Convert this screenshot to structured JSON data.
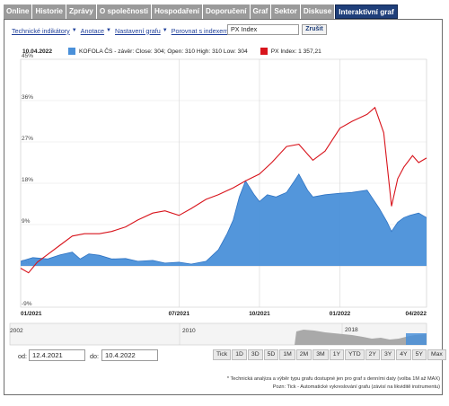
{
  "tabs": [
    {
      "label": "Online",
      "active": false
    },
    {
      "label": "Historie",
      "active": false
    },
    {
      "label": "Zprávy",
      "active": false
    },
    {
      "label": "O společnosti",
      "active": false
    },
    {
      "label": "Hospodaření",
      "active": false
    },
    {
      "label": "Doporučení",
      "active": false
    },
    {
      "label": "Graf",
      "active": false
    },
    {
      "label": "Sektor",
      "active": false
    },
    {
      "label": "Diskuse",
      "active": false
    },
    {
      "label": "Interaktivní graf",
      "active": true
    }
  ],
  "toolbar": {
    "indicators": "Technické indikátory",
    "annotation": "Anotace",
    "settings": "Nastavení grafu",
    "compare": "Porovnat s indexem",
    "compare_value": "PX Index",
    "cancel_label": "Zrušit"
  },
  "legend": {
    "date": "10.04.2022",
    "kofola": "KOFOLA ČS - závěr: Close: 304; Open: 310 High: 310 Low: 304",
    "px": "PX Index: 1 357,21"
  },
  "colors": {
    "kofola_fill": "#4a90d9",
    "kofola_line": "#2f74c4",
    "px_line": "#d8141c",
    "tab_active": "#1f3f7a",
    "tab": "#9a9a9a"
  },
  "chart_data": {
    "type": "area",
    "x_ticks": [
      "01/2021",
      "07/2021",
      "10/2021",
      "01/2022",
      "04/2022"
    ],
    "y_ticks": [
      "45%",
      "36%",
      "27%",
      "18%",
      "9%",
      "0%",
      "-9%"
    ],
    "ylim": [
      -9,
      45
    ],
    "xlim": [
      "2021-01-01",
      "2022-04-10"
    ],
    "series": [
      {
        "name": "KOFOLA ČS",
        "style": "area",
        "points": [
          [
            "2021-01-01",
            1.0
          ],
          [
            "2021-01-15",
            1.8
          ],
          [
            "2021-02-01",
            1.5
          ],
          [
            "2021-02-15",
            2.4
          ],
          [
            "2021-03-01",
            3.0
          ],
          [
            "2021-03-10",
            1.5
          ],
          [
            "2021-03-20",
            2.6
          ],
          [
            "2021-04-01",
            2.3
          ],
          [
            "2021-04-15",
            1.5
          ],
          [
            "2021-05-01",
            1.6
          ],
          [
            "2021-05-15",
            1.0
          ],
          [
            "2021-06-01",
            1.2
          ],
          [
            "2021-06-15",
            0.6
          ],
          [
            "2021-07-01",
            0.8
          ],
          [
            "2021-07-15",
            0.4
          ],
          [
            "2021-08-01",
            1.0
          ],
          [
            "2021-08-15",
            3.5
          ],
          [
            "2021-08-25",
            7.0
          ],
          [
            "2021-09-01",
            10.0
          ],
          [
            "2021-09-08",
            15.0
          ],
          [
            "2021-09-15",
            18.5
          ],
          [
            "2021-09-25",
            15.5
          ],
          [
            "2021-10-01",
            14.0
          ],
          [
            "2021-10-10",
            15.5
          ],
          [
            "2021-10-20",
            15.0
          ],
          [
            "2021-11-01",
            16.0
          ],
          [
            "2021-11-10",
            18.5
          ],
          [
            "2021-11-15",
            20.0
          ],
          [
            "2021-11-25",
            16.5
          ],
          [
            "2021-12-01",
            15.0
          ],
          [
            "2021-12-15",
            15.5
          ],
          [
            "2022-01-01",
            15.8
          ],
          [
            "2022-01-15",
            16.0
          ],
          [
            "2022-02-01",
            16.5
          ],
          [
            "2022-02-15",
            12.5
          ],
          [
            "2022-02-24",
            9.5
          ],
          [
            "2022-03-01",
            7.5
          ],
          [
            "2022-03-08",
            9.5
          ],
          [
            "2022-03-15",
            10.5
          ],
          [
            "2022-03-22",
            11.0
          ],
          [
            "2022-04-01",
            11.5
          ],
          [
            "2022-04-10",
            10.5
          ]
        ]
      },
      {
        "name": "PX Index",
        "style": "line",
        "points": [
          [
            "2021-01-01",
            -0.5
          ],
          [
            "2021-01-10",
            -1.5
          ],
          [
            "2021-01-20",
            0.8
          ],
          [
            "2021-02-01",
            2.5
          ],
          [
            "2021-02-15",
            4.5
          ],
          [
            "2021-03-01",
            6.5
          ],
          [
            "2021-03-15",
            7.0
          ],
          [
            "2021-04-01",
            7.0
          ],
          [
            "2021-04-15",
            7.5
          ],
          [
            "2021-05-01",
            8.5
          ],
          [
            "2021-05-15",
            10.0
          ],
          [
            "2021-06-01",
            11.5
          ],
          [
            "2021-06-15",
            12.0
          ],
          [
            "2021-07-01",
            11.0
          ],
          [
            "2021-07-15",
            12.5
          ],
          [
            "2021-08-01",
            14.5
          ],
          [
            "2021-08-15",
            15.5
          ],
          [
            "2021-09-01",
            17.0
          ],
          [
            "2021-09-15",
            18.5
          ],
          [
            "2021-10-01",
            20.0
          ],
          [
            "2021-10-15",
            22.5
          ],
          [
            "2021-11-01",
            26.0
          ],
          [
            "2021-11-15",
            26.5
          ],
          [
            "2021-12-01",
            23.0
          ],
          [
            "2021-12-15",
            25.0
          ],
          [
            "2022-01-01",
            30.0
          ],
          [
            "2022-01-15",
            31.5
          ],
          [
            "2022-02-01",
            33.0
          ],
          [
            "2022-02-10",
            34.5
          ],
          [
            "2022-02-20",
            29.0
          ],
          [
            "2022-03-01",
            13.0
          ],
          [
            "2022-03-08",
            19.0
          ],
          [
            "2022-03-15",
            21.5
          ],
          [
            "2022-03-25",
            24.0
          ],
          [
            "2022-04-01",
            22.5
          ],
          [
            "2022-04-10",
            23.5
          ]
        ]
      }
    ]
  },
  "navigator": {
    "labels": [
      "2002",
      "2010",
      "2018"
    ]
  },
  "dates": {
    "from_label": "od:",
    "from_value": "12.4.2021",
    "to_label": "do:",
    "to_value": "10.4.2022"
  },
  "ranges": [
    "Tick",
    "1D",
    "3D",
    "5D",
    "1M",
    "2M",
    "3M",
    "1Y",
    "YTD",
    "2Y",
    "3Y",
    "4Y",
    "5Y",
    "Max"
  ],
  "notes": [
    "* Technická analýza a výběr typu grafu dostupné jen pro graf s denními daty (volba 1M až MAX)",
    "Pozn: Tick - Automatické vykreslování grafu (závisí na likviditě instrumentu)"
  ]
}
